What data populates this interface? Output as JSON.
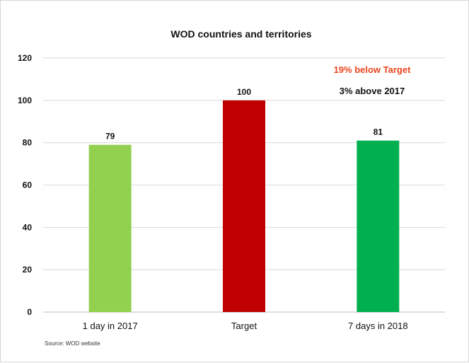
{
  "chart_data": {
    "type": "bar",
    "title": "WOD countries and territories",
    "categories": [
      "1 day in 2017",
      "Target",
      "7 days in 2018"
    ],
    "values": [
      79,
      100,
      81
    ],
    "data_labels": [
      "79",
      "100",
      "81"
    ],
    "bar_colors": [
      "#92d050",
      "#c00000",
      "#00b050"
    ],
    "ylim": [
      0,
      120
    ],
    "yticks": [
      0,
      20,
      40,
      60,
      80,
      100,
      120
    ],
    "ytick_labels": [
      "0",
      "20",
      "40",
      "60",
      "80",
      "100",
      "120"
    ],
    "grid": true,
    "legend": "none",
    "annotations": [
      {
        "text": "19% below Target",
        "color": "#e8451e"
      },
      {
        "text": "3% above 2017",
        "color": "#111111"
      }
    ],
    "source": "Source:  WOD website"
  }
}
